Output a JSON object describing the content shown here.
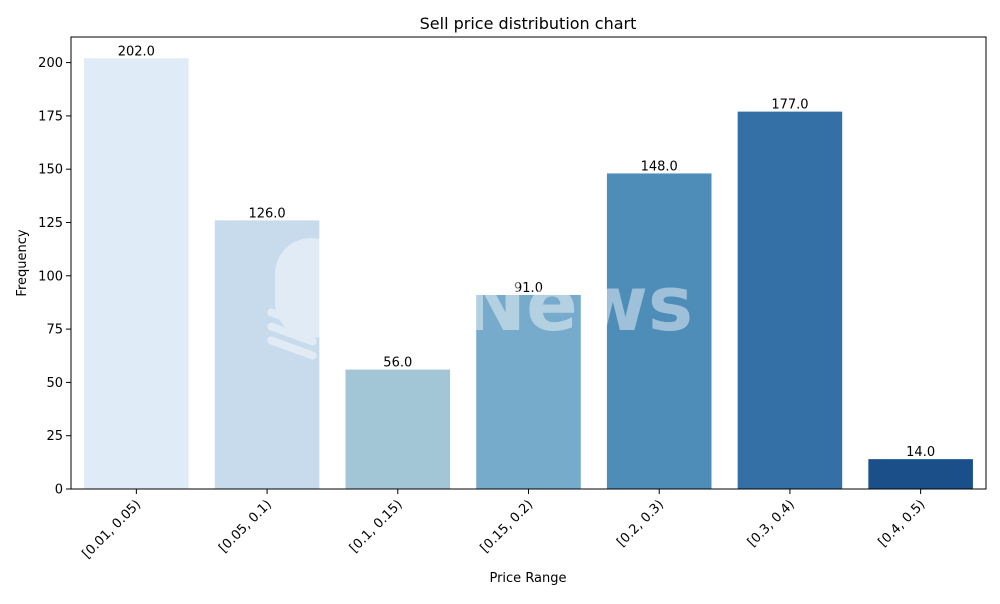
{
  "chart_data": {
    "type": "bar",
    "title": "Sell price distribution chart",
    "xlabel": "Price Range",
    "ylabel": "Frequency",
    "categories": [
      "[0.01, 0.05)",
      "[0.05, 0.1)",
      "[0.1, 0.15)",
      "[0.15, 0.2)",
      "[0.2, 0.3)",
      "[0.3, 0.4)",
      "[0.4, 0.5)"
    ],
    "values": [
      202,
      126,
      56,
      91,
      148,
      177,
      14
    ],
    "value_labels": [
      "202.0",
      "126.0",
      "56.0",
      "91.0",
      "148.0",
      "177.0",
      "14.0"
    ],
    "colors": [
      "#dfebf6",
      "#c7dbed",
      "#a3c6d6",
      "#76abcb",
      "#4e8db8",
      "#3470a6",
      "#1a4f8a"
    ],
    "ylim": [
      0,
      212
    ],
    "yticks": [
      0,
      25,
      50,
      75,
      100,
      125,
      150,
      175,
      200
    ],
    "grid": false,
    "legend": "none"
  },
  "watermark": {
    "text": "PANews"
  }
}
